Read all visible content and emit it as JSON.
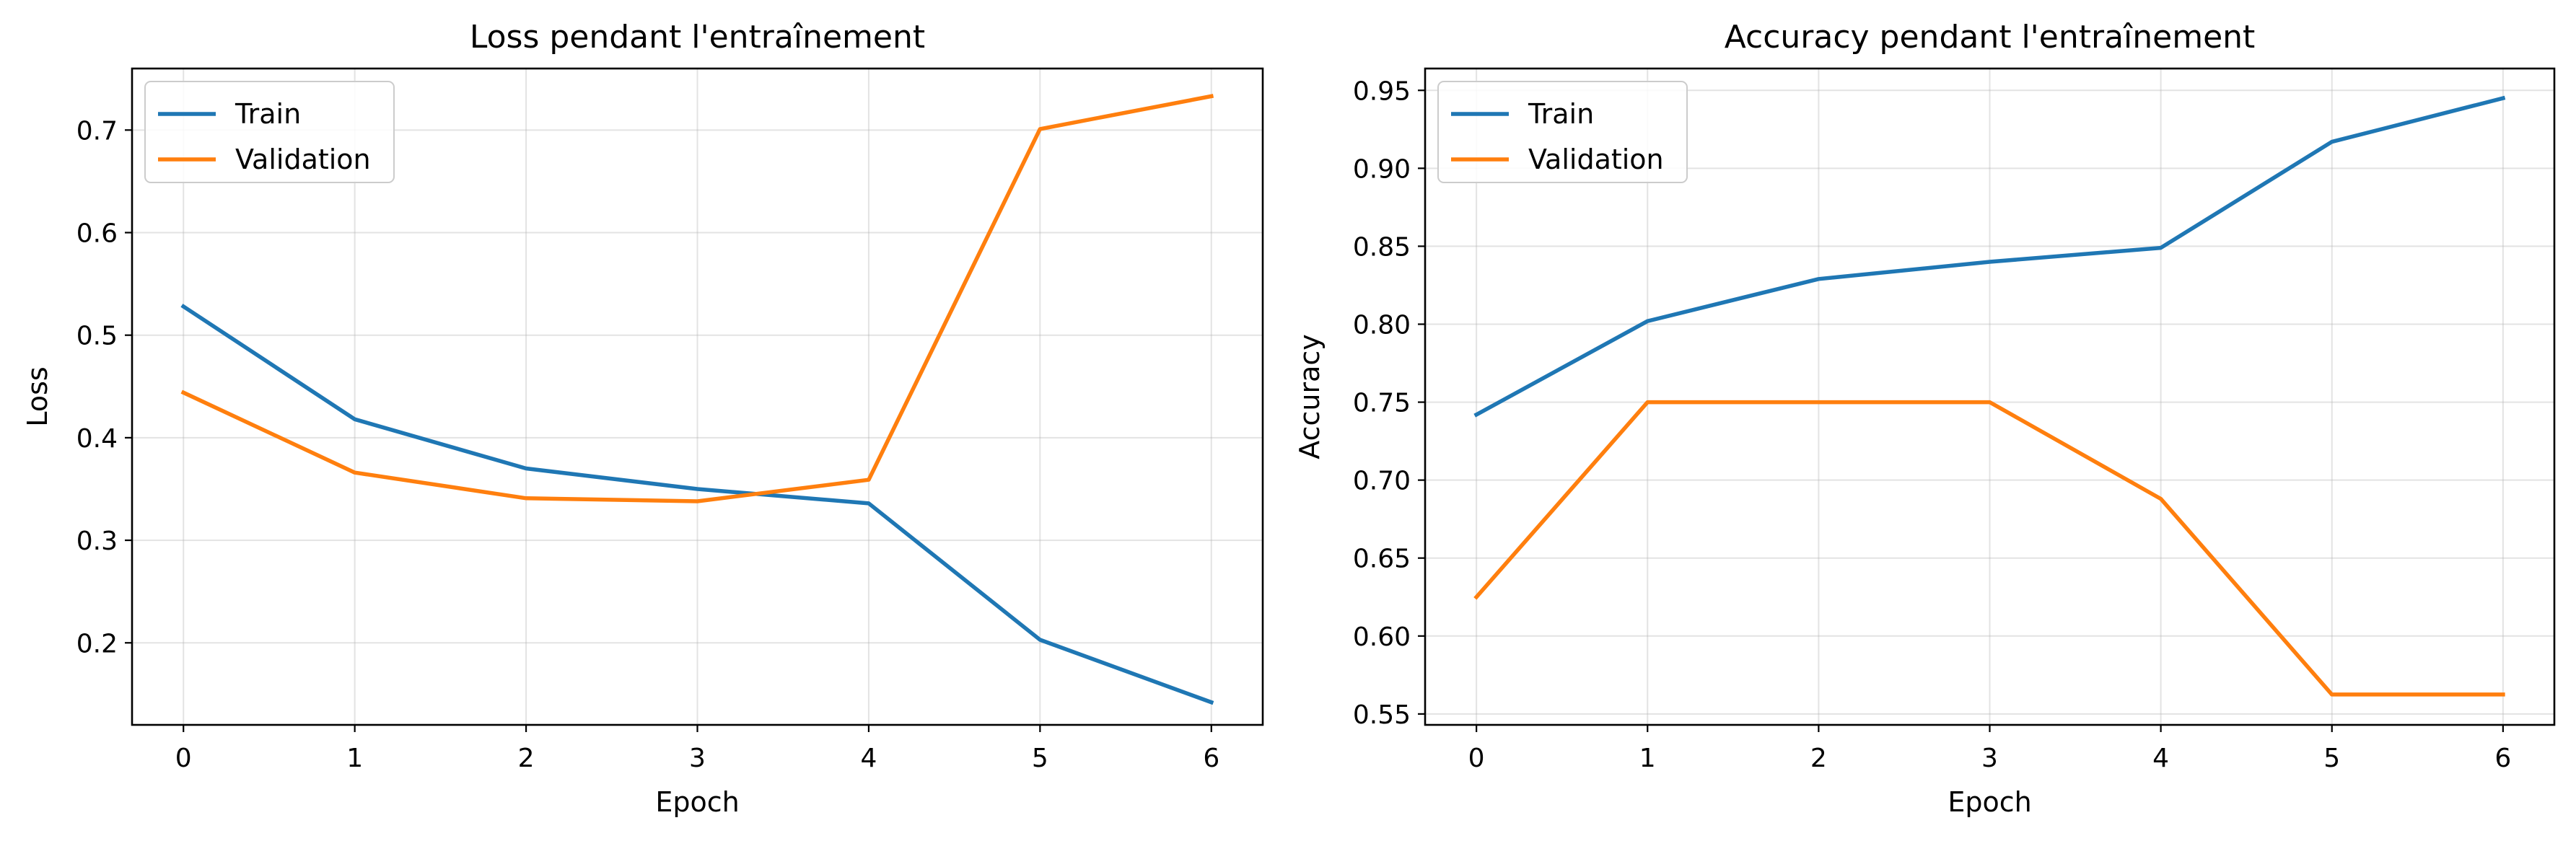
{
  "chart_data": [
    {
      "type": "line",
      "title": "Loss pendant l'entraînement",
      "xlabel": "Epoch",
      "ylabel": "Loss",
      "x": [
        0,
        1,
        2,
        3,
        4,
        5,
        6
      ],
      "xlim": [
        -0.3,
        6.3
      ],
      "ylim": [
        0.12,
        0.76
      ],
      "xticks": [
        "0",
        "1",
        "2",
        "3",
        "4",
        "5",
        "6"
      ],
      "yticks": [
        "0.2",
        "0.3",
        "0.4",
        "0.5",
        "0.6",
        "0.7"
      ],
      "ytick_values": [
        0.2,
        0.3,
        0.4,
        0.5,
        0.6,
        0.7
      ],
      "grid": true,
      "legend_position": "top-left",
      "series": [
        {
          "name": "Train",
          "color": "#1f77b4",
          "values": [
            0.528,
            0.418,
            0.37,
            0.35,
            0.336,
            0.203,
            0.142
          ]
        },
        {
          "name": "Validation",
          "color": "#ff7f0e",
          "values": [
            0.444,
            0.366,
            0.341,
            0.338,
            0.359,
            0.701,
            0.733
          ]
        }
      ]
    },
    {
      "type": "line",
      "title": "Accuracy pendant l'entraînement",
      "xlabel": "Epoch",
      "ylabel": "Accuracy",
      "x": [
        0,
        1,
        2,
        3,
        4,
        5,
        6
      ],
      "xlim": [
        -0.3,
        6.3
      ],
      "ylim": [
        0.543,
        0.964
      ],
      "xticks": [
        "0",
        "1",
        "2",
        "3",
        "4",
        "5",
        "6"
      ],
      "yticks": [
        "0.55",
        "0.60",
        "0.65",
        "0.70",
        "0.75",
        "0.80",
        "0.85",
        "0.90",
        "0.95"
      ],
      "ytick_values": [
        0.55,
        0.6,
        0.65,
        0.7,
        0.75,
        0.8,
        0.85,
        0.9,
        0.95
      ],
      "grid": true,
      "legend_position": "top-left",
      "series": [
        {
          "name": "Train",
          "color": "#1f77b4",
          "values": [
            0.742,
            0.802,
            0.829,
            0.84,
            0.849,
            0.917,
            0.945
          ]
        },
        {
          "name": "Validation",
          "color": "#ff7f0e",
          "values": [
            0.625,
            0.75,
            0.75,
            0.75,
            0.688,
            0.5625,
            0.5625
          ]
        }
      ]
    }
  ]
}
